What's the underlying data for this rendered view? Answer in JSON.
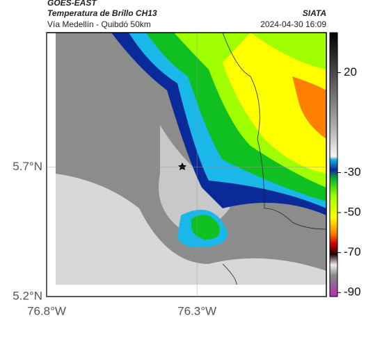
{
  "map": {
    "title": "GOES-EAST",
    "subtitle": "Temperatura de Brillo CH13",
    "route": "Vía Medellín - Quibdó 50km",
    "source": "SIATA",
    "datetime": "2024-04-30 16:09",
    "xlim": [
      -76.8,
      -75.87
    ],
    "ylim": [
      5.2,
      6.22
    ],
    "xticks": [
      {
        "value": -76.8,
        "label": "76.8°W"
      },
      {
        "value": -76.3,
        "label": "76.3°W"
      }
    ],
    "yticks": [
      {
        "value": 5.2,
        "label": "5.2°N"
      },
      {
        "value": 5.7,
        "label": "5.7°N"
      }
    ],
    "colorbar": {
      "lim": [
        -92,
        40
      ],
      "ticks": [
        20,
        -30,
        -50,
        -70,
        -90
      ]
    }
  }
}
